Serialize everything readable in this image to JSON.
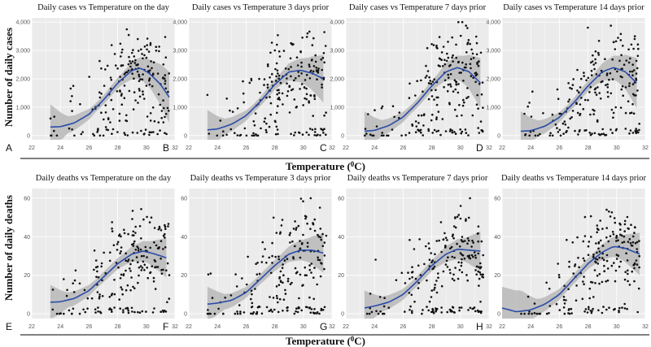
{
  "figure": {
    "shared_xlabel": "Temperature (",
    "shared_xlabel_sup": "0",
    "shared_xlabel_end": "C)",
    "row1_ylabel": "Number of daily cases",
    "row2_ylabel": "Number of daily deaths",
    "colors": {
      "panel_bg": "#ebebeb",
      "grid": "#ffffff",
      "point": "#111111",
      "smooth": "#2a4ba8",
      "ribbon": "#b8b8b8"
    }
  },
  "chart_data": [
    {
      "label": "A",
      "type": "scatter",
      "title": "Daily cases vs Temperature on the day",
      "xlim": [
        22,
        32
      ],
      "ylim": [
        -150,
        4150
      ],
      "xticks": [
        22,
        24,
        26,
        28,
        30,
        32
      ],
      "yticks": [
        0,
        1000,
        2000,
        3000,
        4000
      ],
      "ytick_labels": [
        "0",
        "1,000",
        "2,000",
        "3,000",
        "4,000"
      ],
      "xlabel": "Temperature (0C)",
      "ylabel": "Number of daily cases",
      "seed": 11,
      "smooth": [
        [
          23.3,
          300
        ],
        [
          24,
          310
        ],
        [
          25,
          450
        ],
        [
          26,
          750
        ],
        [
          27,
          1250
        ],
        [
          28,
          1850
        ],
        [
          29,
          2300
        ],
        [
          29.6,
          2380
        ],
        [
          30.2,
          2200
        ],
        [
          31,
          1800
        ],
        [
          31.6,
          1350
        ]
      ],
      "band": [
        800,
        300,
        150,
        200,
        500,
        900
      ]
    },
    {
      "label": "B",
      "type": "scatter",
      "title": "Daily cases vs Temperature 3 days prior",
      "xlim": [
        22,
        32
      ],
      "ylim": [
        -150,
        4150
      ],
      "xticks": [
        22,
        24,
        26,
        28,
        30,
        32
      ],
      "yticks": [
        0,
        1000,
        2000,
        3000,
        4000
      ],
      "ytick_labels": [
        "0",
        "1,000",
        "2,000",
        "3,000",
        "4,000"
      ],
      "xlabel": "Temperature (0C)",
      "ylabel": "Number of daily cases",
      "seed": 23,
      "smooth": [
        [
          23.3,
          200
        ],
        [
          24,
          230
        ],
        [
          25,
          400
        ],
        [
          26,
          700
        ],
        [
          27,
          1200
        ],
        [
          28,
          1800
        ],
        [
          29,
          2250
        ],
        [
          29.8,
          2300
        ],
        [
          30.6,
          2200
        ],
        [
          31.4,
          2000
        ]
      ],
      "band": [
        700,
        280,
        150,
        200,
        500,
        900
      ]
    },
    {
      "label": "C",
      "type": "scatter",
      "title": "Daily cases vs Temperature 7 days prior",
      "xlim": [
        22,
        32
      ],
      "ylim": [
        -150,
        4150
      ],
      "xticks": [
        22,
        24,
        26,
        28,
        30,
        32
      ],
      "yticks": [
        0,
        1000,
        2000,
        3000,
        4000
      ],
      "ytick_labels": [
        "0",
        "1,000",
        "2,000",
        "3,000",
        "4,000"
      ],
      "xlabel": "Temperature (0C)",
      "ylabel": "Number of daily cases",
      "seed": 37,
      "smooth": [
        [
          23.3,
          150
        ],
        [
          24,
          180
        ],
        [
          25,
          350
        ],
        [
          26,
          650
        ],
        [
          27,
          1150
        ],
        [
          28,
          1750
        ],
        [
          29,
          2250
        ],
        [
          29.8,
          2400
        ],
        [
          30.6,
          2250
        ],
        [
          31.4,
          1850
        ]
      ],
      "band": [
        700,
        280,
        150,
        200,
        500,
        950
      ]
    },
    {
      "label": "D",
      "type": "scatter",
      "title": "Daily cases vs Temperature 14 days prior",
      "xlim": [
        22,
        32
      ],
      "ylim": [
        -150,
        4150
      ],
      "xticks": [
        22,
        24,
        26,
        28,
        30,
        32
      ],
      "yticks": [
        0,
        1000,
        2000,
        3000,
        4000
      ],
      "ytick_labels": [
        "0",
        "1,000",
        "2,000",
        "3,000",
        "4,000"
      ],
      "xlabel": "Temperature (0C)",
      "ylabel": "Number of daily cases",
      "seed": 41,
      "smooth": [
        [
          23.3,
          150
        ],
        [
          24,
          170
        ],
        [
          25,
          330
        ],
        [
          26,
          640
        ],
        [
          27,
          1150
        ],
        [
          28,
          1750
        ],
        [
          29,
          2250
        ],
        [
          29.8,
          2400
        ],
        [
          30.6,
          2250
        ],
        [
          31.4,
          1850
        ]
      ],
      "band": [
        700,
        280,
        150,
        200,
        500,
        950
      ]
    },
    {
      "label": "E",
      "type": "scatter",
      "title": "Daily deaths vs Temperature on the day",
      "xlim": [
        22,
        32
      ],
      "ylim": [
        -2.5,
        65
      ],
      "xticks": [
        22,
        24,
        26,
        28,
        30,
        32
      ],
      "yticks": [
        0,
        20,
        40,
        60
      ],
      "ytick_labels": [
        "0",
        "20",
        "40",
        "60"
      ],
      "xlabel": "Temperature (0C)",
      "ylabel": "Number of daily deaths",
      "seed": 53,
      "smooth": [
        [
          23.3,
          6
        ],
        [
          24,
          6.2
        ],
        [
          25,
          8
        ],
        [
          26,
          12
        ],
        [
          27,
          19
        ],
        [
          28,
          26
        ],
        [
          29,
          31
        ],
        [
          29.8,
          32.5
        ],
        [
          30.6,
          31
        ],
        [
          31.4,
          29
        ]
      ],
      "band": [
        9,
        4,
        2.5,
        3,
        6,
        11
      ]
    },
    {
      "label": "F",
      "type": "scatter",
      "title": "Daily deaths vs Temperature 3 days prior",
      "xlim": [
        22,
        32
      ],
      "ylim": [
        -2.5,
        65
      ],
      "xticks": [
        22,
        24,
        26,
        28,
        30,
        32
      ],
      "yticks": [
        0,
        20,
        40,
        60
      ],
      "ytick_labels": [
        "0",
        "20",
        "40",
        "60"
      ],
      "xlabel": "Temperature (0C)",
      "ylabel": "Number of daily deaths",
      "seed": 67,
      "smooth": [
        [
          23.3,
          5
        ],
        [
          24,
          5.5
        ],
        [
          25,
          7
        ],
        [
          26,
          11
        ],
        [
          27,
          18
        ],
        [
          28,
          25
        ],
        [
          29,
          31
        ],
        [
          29.8,
          33
        ],
        [
          30.6,
          33
        ],
        [
          31.4,
          31.5
        ]
      ],
      "band": [
        9,
        4,
        2.5,
        3,
        6,
        11
      ]
    },
    {
      "label": "G",
      "type": "scatter",
      "title": "Daily deaths vs Temperature 7 days prior",
      "xlim": [
        22,
        32
      ],
      "ylim": [
        -2.5,
        65
      ],
      "xticks": [
        22,
        24,
        26,
        28,
        30,
        32
      ],
      "yticks": [
        0,
        20,
        40,
        60
      ],
      "ytick_labels": [
        "0",
        "20",
        "40",
        "60"
      ],
      "xlabel": "Temperature (0C)",
      "ylabel": "Number of daily deaths",
      "seed": 79,
      "smooth": [
        [
          23.3,
          3
        ],
        [
          24,
          4
        ],
        [
          25,
          6
        ],
        [
          26,
          10
        ],
        [
          27,
          17
        ],
        [
          28,
          25
        ],
        [
          29,
          31
        ],
        [
          29.8,
          33.5
        ],
        [
          30.6,
          33
        ],
        [
          31.4,
          32.5
        ]
      ],
      "band": [
        9,
        4,
        2.5,
        3,
        6,
        11
      ]
    },
    {
      "label": "H",
      "type": "scatter",
      "title": "Daily deaths vs Temperature 14 days prior",
      "xlim": [
        22,
        32
      ],
      "ylim": [
        -2.5,
        65
      ],
      "xticks": [
        22,
        24,
        26,
        28,
        30,
        32
      ],
      "yticks": [
        0,
        20,
        40,
        60
      ],
      "ytick_labels": [
        "0",
        "20",
        "40",
        "60"
      ],
      "xlabel": "Temperature (0C)",
      "ylabel": "Number of daily deaths",
      "seed": 83,
      "smooth": [
        [
          22,
          3
        ],
        [
          23,
          1
        ],
        [
          24,
          2
        ],
        [
          25,
          5
        ],
        [
          26,
          10
        ],
        [
          27,
          18
        ],
        [
          28,
          26
        ],
        [
          29,
          32
        ],
        [
          29.8,
          35
        ],
        [
          30.6,
          34
        ],
        [
          31.6,
          31
        ]
      ],
      "band": [
        11,
        4,
        2.5,
        3,
        6,
        11
      ]
    }
  ]
}
